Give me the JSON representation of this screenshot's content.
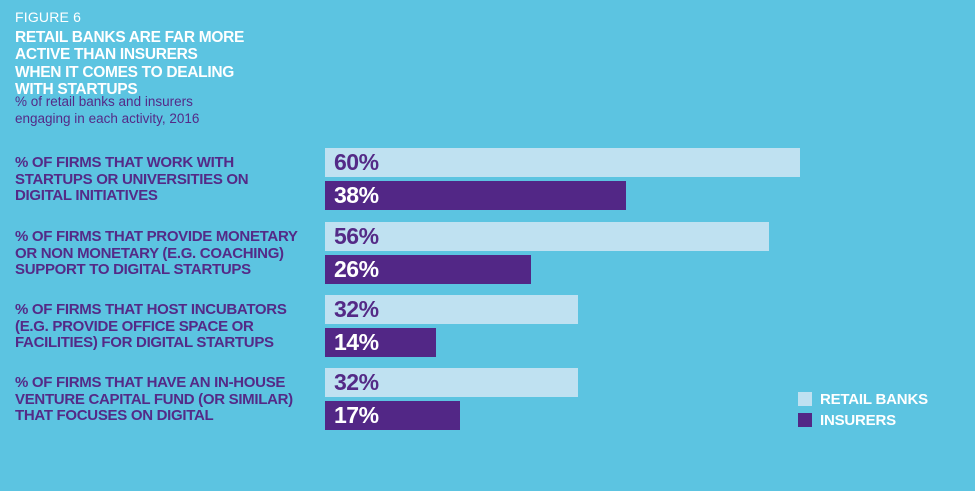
{
  "figure": {
    "label": "FIGURE 6",
    "title_lines": [
      "RETAIL BANKS ARE FAR MORE",
      "ACTIVE THAN INSURERS",
      "WHEN IT COMES TO DEALING",
      "WITH STARTUPS"
    ],
    "subtitle_lines": [
      "% of retail banks and insurers",
      "engaging in each activity, 2016"
    ]
  },
  "chart_data": {
    "type": "bar",
    "orientation": "horizontal",
    "value_unit": "%",
    "xlim": [
      0,
      100
    ],
    "grid": false,
    "legend_position": "bottom-right",
    "categories": [
      "% OF FIRMS THAT WORK WITH STARTUPS OR UNIVERSITIES ON DIGITAL INITIATIVES",
      "% OF FIRMS THAT PROVIDE MONETARY OR NON MONETARY (E.G. COACHING) SUPPORT TO DIGITAL STARTUPS",
      "% OF FIRMS THAT HOST INCUBATORS (E.G. PROVIDE OFFICE SPACE OR FACILITIES) FOR DIGITAL STARTUPS",
      "% OF FIRMS THAT HAVE AN IN-HOUSE VENTURE CAPITAL FUND (OR SIMILAR) THAT FOCUSES ON DIGITAL"
    ],
    "series": [
      {
        "name": "RETAIL BANKS",
        "color": "#bfe1f1",
        "values": [
          60,
          56,
          32,
          32
        ]
      },
      {
        "name": "INSURERS",
        "color": "#522786",
        "values": [
          38,
          26,
          14,
          17
        ]
      }
    ],
    "rows": [
      {
        "label_lines": [
          "% OF FIRMS THAT WORK WITH",
          "STARTUPS OR UNIVERSITIES ON",
          "DIGITAL INITIATIVES"
        ],
        "retail_banks": 60,
        "insurers": 38
      },
      {
        "label_lines": [
          "% OF FIRMS THAT PROVIDE MONETARY",
          "OR NON MONETARY (E.G. COACHING)",
          "SUPPORT TO DIGITAL STARTUPS"
        ],
        "retail_banks": 56,
        "insurers": 26
      },
      {
        "label_lines": [
          "% OF FIRMS THAT HOST INCUBATORS",
          "(E.G. PROVIDE OFFICE SPACE OR",
          "FACILITIES) FOR DIGITAL STARTUPS"
        ],
        "retail_banks": 32,
        "insurers": 14
      },
      {
        "label_lines": [
          "% OF FIRMS THAT HAVE AN IN-HOUSE",
          "VENTURE CAPITAL FUND (OR SIMILAR)",
          "THAT FOCUSES ON DIGITAL"
        ],
        "retail_banks": 32,
        "insurers": 17
      }
    ]
  },
  "legend": {
    "items": [
      {
        "label": "RETAIL BANKS",
        "color": "#bfe1f1"
      },
      {
        "label": "INSURERS",
        "color": "#522786"
      }
    ]
  },
  "colors": {
    "background": "#5cc4e1",
    "retail_banks_bar": "#bfe1f1",
    "insurers_bar": "#522786",
    "purple_text": "#542a87",
    "white_text": "#ffffff"
  }
}
